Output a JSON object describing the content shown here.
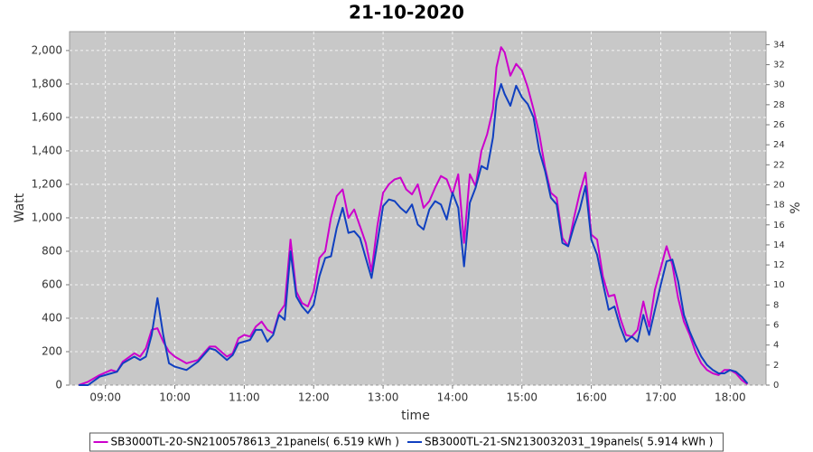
{
  "chart_data": {
    "type": "line",
    "title": "21-10-2020",
    "x_label": "time",
    "y_label": "Watt",
    "y2_label": "%",
    "x": [
      "08:37",
      "08:45",
      "08:55",
      "09:05",
      "09:10",
      "09:15",
      "09:25",
      "09:30",
      "09:35",
      "09:40",
      "09:45",
      "09:50",
      "09:55",
      "10:00",
      "10:10",
      "10:20",
      "10:30",
      "10:35",
      "10:45",
      "10:50",
      "10:55",
      "11:00",
      "11:05",
      "11:10",
      "11:15",
      "11:20",
      "11:25",
      "11:30",
      "11:35",
      "11:40",
      "11:45",
      "11:50",
      "11:55",
      "12:00",
      "12:05",
      "12:10",
      "12:15",
      "12:20",
      "12:25",
      "12:30",
      "12:35",
      "12:40",
      "12:45",
      "12:50",
      "12:55",
      "13:00",
      "13:05",
      "13:10",
      "13:15",
      "13:20",
      "13:25",
      "13:30",
      "13:35",
      "13:40",
      "13:45",
      "13:50",
      "13:55",
      "14:00",
      "14:05",
      "14:10",
      "14:15",
      "14:20",
      "14:25",
      "14:30",
      "14:35",
      "14:38",
      "14:42",
      "14:45",
      "14:50",
      "14:55",
      "15:00",
      "15:05",
      "15:10",
      "15:15",
      "15:20",
      "15:25",
      "15:30",
      "15:35",
      "15:40",
      "15:45",
      "15:50",
      "15:55",
      "16:00",
      "16:05",
      "16:10",
      "16:15",
      "16:20",
      "16:25",
      "16:30",
      "16:35",
      "16:40",
      "16:45",
      "16:50",
      "16:55",
      "17:00",
      "17:05",
      "17:10",
      "17:15",
      "17:20",
      "17:25",
      "17:30",
      "17:35",
      "17:40",
      "17:45",
      "17:50",
      "17:55",
      "18:00",
      "18:05",
      "18:10",
      "18:15"
    ],
    "series": [
      {
        "name": "SB3000TL-20-SN2100578613_21panels( 6.519 kWh )",
        "color": "#cc00cc",
        "values": [
          0,
          20,
          60,
          90,
          80,
          140,
          190,
          170,
          220,
          330,
          340,
          260,
          200,
          170,
          130,
          150,
          230,
          230,
          170,
          190,
          280,
          300,
          290,
          350,
          380,
          330,
          310,
          430,
          480,
          870,
          560,
          490,
          470,
          560,
          760,
          800,
          1000,
          1130,
          1170,
          1000,
          1050,
          950,
          850,
          680,
          950,
          1150,
          1200,
          1230,
          1240,
          1170,
          1140,
          1200,
          1060,
          1100,
          1180,
          1250,
          1230,
          1140,
          1260,
          850,
          1260,
          1190,
          1400,
          1500,
          1650,
          1900,
          2020,
          1990,
          1850,
          1920,
          1880,
          1780,
          1650,
          1500,
          1300,
          1150,
          1120,
          880,
          830,
          1000,
          1150,
          1270,
          900,
          870,
          650,
          530,
          540,
          400,
          300,
          290,
          330,
          500,
          350,
          570,
          700,
          830,
          720,
          520,
          380,
          300,
          200,
          130,
          90,
          70,
          60,
          90,
          90,
          70,
          30,
          5
        ]
      },
      {
        "name": "SB3000TL-21-SN2130032031_19panels( 5.914 kWh )",
        "color": "#1040c0",
        "values": [
          0,
          0,
          50,
          70,
          80,
          130,
          170,
          150,
          170,
          300,
          520,
          300,
          130,
          110,
          90,
          140,
          220,
          210,
          150,
          180,
          250,
          260,
          270,
          330,
          330,
          260,
          300,
          420,
          390,
          800,
          530,
          470,
          430,
          480,
          650,
          760,
          770,
          940,
          1060,
          910,
          920,
          880,
          760,
          640,
          850,
          1070,
          1110,
          1100,
          1060,
          1030,
          1080,
          960,
          930,
          1050,
          1100,
          1080,
          990,
          1150,
          1060,
          710,
          1090,
          1180,
          1310,
          1290,
          1480,
          1700,
          1800,
          1740,
          1670,
          1790,
          1720,
          1680,
          1600,
          1400,
          1280,
          1120,
          1080,
          850,
          830,
          950,
          1050,
          1190,
          870,
          780,
          610,
          450,
          470,
          350,
          260,
          290,
          260,
          420,
          300,
          450,
          600,
          740,
          750,
          620,
          420,
          320,
          240,
          170,
          120,
          90,
          70,
          70,
          90,
          80,
          50,
          10
        ]
      }
    ],
    "xlim": [
      "08:29",
      "18:31"
    ],
    "xticks": [
      "09:00",
      "10:00",
      "11:00",
      "12:00",
      "13:00",
      "14:00",
      "15:00",
      "16:00",
      "17:00",
      "18:00"
    ],
    "ylim": [
      0,
      2113
    ],
    "yticks": [
      0,
      200,
      400,
      600,
      800,
      {
        "value": 1000,
        "label": "1,000"
      },
      {
        "value": 1200,
        "label": "1,200"
      },
      {
        "value": 1400,
        "label": "1,400"
      },
      {
        "value": 1600,
        "label": "1,600"
      },
      {
        "value": 1800,
        "label": "1,800"
      },
      {
        "value": 2000,
        "label": "2,000"
      }
    ],
    "y2lim": [
      0,
      35.3
    ],
    "y2ticks": [
      0,
      2,
      4,
      6,
      8,
      10,
      12,
      14,
      16,
      18,
      20,
      22,
      24,
      26,
      28,
      30,
      32,
      34
    ],
    "grid": true,
    "legend": "bottom"
  }
}
